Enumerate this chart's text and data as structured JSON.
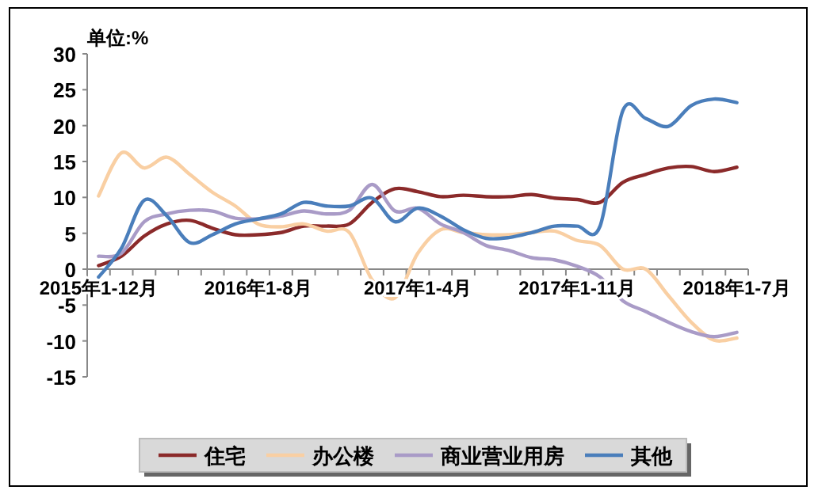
{
  "chart_data": {
    "type": "line",
    "ylabel": "单位:%",
    "categories": [
      "2015年1-12月",
      null,
      null,
      null,
      null,
      null,
      null,
      "2016年1-8月",
      null,
      null,
      null,
      null,
      null,
      null,
      "2017年1-4月",
      null,
      null,
      null,
      null,
      null,
      null,
      "2017年1-11月",
      null,
      null,
      null,
      null,
      null,
      null,
      "2018年1-7月"
    ],
    "ylim": [
      -15,
      30
    ],
    "yticks": [
      -15,
      -10,
      -5,
      0,
      5,
      10,
      15,
      20,
      25,
      30
    ],
    "legend": "bottom",
    "grid": false,
    "series": [
      {
        "name": "住宅",
        "color": "#8b2a2a",
        "values": [
          0.5,
          1.8,
          4.6,
          6.3,
          6.8,
          5.7,
          4.8,
          4.8,
          5.1,
          6.0,
          6.0,
          6.3,
          9.3,
          11.2,
          10.8,
          10.1,
          10.3,
          10.1,
          10.1,
          10.4,
          9.9,
          9.7,
          9.3,
          12.1,
          13.2,
          14.1,
          14.3,
          13.6,
          14.2
        ]
      },
      {
        "name": "办公楼",
        "color": "#f9cfa3",
        "values": [
          10.2,
          16.2,
          14.1,
          15.6,
          13.2,
          10.7,
          8.8,
          6.3,
          5.9,
          6.3,
          5.3,
          5.1,
          -1.5,
          -4.0,
          2.2,
          5.5,
          5.1,
          4.8,
          4.8,
          5.1,
          5.3,
          4.0,
          3.3,
          0,
          0,
          -3.7,
          -7.4,
          -9.9,
          -9.6
        ]
      },
      {
        "name": "商业营业用房",
        "color": "#a99bc7",
        "values": [
          1.8,
          2.2,
          6.6,
          7.7,
          8.2,
          8.1,
          7.1,
          7.0,
          7.4,
          8.1,
          7.7,
          8.2,
          11.8,
          8.1,
          8.5,
          6.3,
          5.1,
          3.3,
          2.6,
          1.6,
          1.3,
          0.4,
          -1.1,
          -4.4,
          -5.9,
          -7.4,
          -8.7,
          -9.4,
          -8.8
        ]
      },
      {
        "name": "其他",
        "color": "#4a7ebb",
        "values": [
          -1.1,
          2.9,
          9.6,
          7.4,
          3.7,
          4.8,
          6.3,
          7.0,
          7.7,
          9.3,
          8.8,
          8.8,
          9.9,
          6.6,
          8.5,
          7.4,
          5.5,
          4.3,
          4.4,
          5.1,
          6.0,
          6.0,
          6.0,
          22.1,
          21.0,
          19.9,
          22.8,
          23.7,
          23.2
        ]
      }
    ]
  }
}
